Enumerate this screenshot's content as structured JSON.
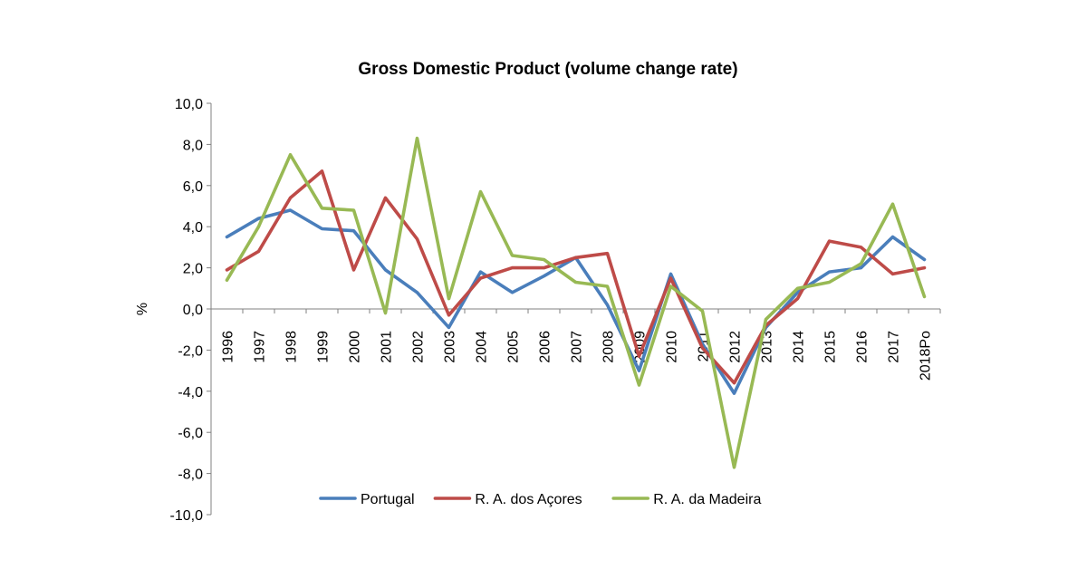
{
  "chart_data": {
    "type": "line",
    "title": "Gross Domestic Product (volume change rate)",
    "ylabel": "%",
    "xlabel": "",
    "ylim": [
      -10,
      10
    ],
    "ystep": 2,
    "ytick_labels": [
      "-10,0",
      "-8,0",
      "-6,0",
      "-4,0",
      "-2,0",
      "0,0",
      "2,0",
      "4,0",
      "6,0",
      "8,0",
      "10,0"
    ],
    "categories": [
      "1996",
      "1997",
      "1998",
      "1999",
      "2000",
      "2001",
      "2002",
      "2003",
      "2004",
      "2005",
      "2006",
      "2007",
      "2008",
      "2009",
      "2010",
      "2011",
      "2012",
      "2013",
      "2014",
      "2015",
      "2016",
      "2017",
      "2018Po"
    ],
    "series": [
      {
        "name": "Portugal",
        "color": "#4a7ebb",
        "values": [
          3.5,
          4.4,
          4.8,
          3.9,
          3.8,
          1.9,
          0.8,
          -0.9,
          1.8,
          0.8,
          1.6,
          2.5,
          0.2,
          -3.0,
          1.7,
          -1.7,
          -4.1,
          -0.9,
          0.8,
          1.8,
          2.0,
          3.5,
          2.4
        ]
      },
      {
        "name": "R. A. dos Açores",
        "color": "#be4b48",
        "values": [
          1.9,
          2.8,
          5.4,
          6.7,
          1.9,
          5.4,
          3.4,
          -0.3,
          1.5,
          2.0,
          2.0,
          2.5,
          2.7,
          -2.3,
          1.5,
          -1.9,
          -3.6,
          -0.8,
          0.5,
          3.3,
          3.0,
          1.7,
          2.0
        ]
      },
      {
        "name": "R. A. da Madeira",
        "color": "#98b954",
        "values": [
          1.4,
          4.0,
          7.5,
          4.9,
          4.8,
          -0.2,
          8.3,
          0.5,
          5.7,
          2.6,
          2.4,
          1.3,
          1.1,
          -3.7,
          1.1,
          -0.1,
          -7.7,
          -0.5,
          1.0,
          1.3,
          2.2,
          5.1,
          0.6
        ]
      }
    ],
    "legend_position": "bottom",
    "grid": false
  }
}
